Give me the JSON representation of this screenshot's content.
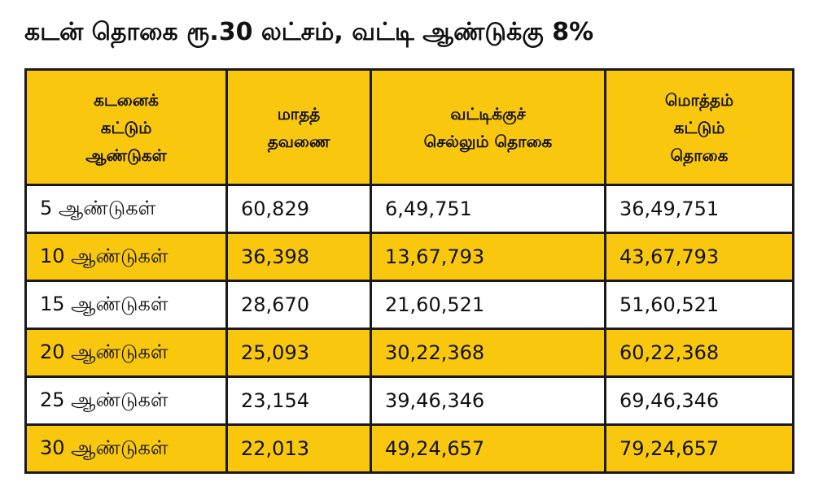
{
  "title": "கடன் தொகை ரூ.30 லட்சம், வட்டி ஆண்டுக்கு 8%",
  "colors": {
    "header_bg": "#f9c80e",
    "alt_row_bg": "#f9c80e",
    "row_bg": "#ffffff",
    "border": "#1a1a1a"
  },
  "table": {
    "headers": [
      [
        "கடனைக்",
        "கட்டும்",
        "ஆண்டுகள்"
      ],
      [
        "மாதத்",
        "தவணை"
      ],
      [
        "வட்டிக்குச்",
        "செல்லும் தொகை"
      ],
      [
        "மொத்தம்",
        "கட்டும்",
        "தொகை"
      ]
    ],
    "rows": [
      [
        "5 ஆண்டுகள்",
        "60,829",
        "6,49,751",
        "36,49,751"
      ],
      [
        "10 ஆண்டுகள்",
        "36,398",
        "13,67,793",
        "43,67,793"
      ],
      [
        "15 ஆண்டுகள்",
        "28,670",
        "21,60,521",
        "51,60,521"
      ],
      [
        "20 ஆண்டுகள்",
        "25,093",
        "30,22,368",
        "60,22,368"
      ],
      [
        "25 ஆண்டுகள்",
        "23,154",
        "39,46,346",
        "69,46,346"
      ],
      [
        "30 ஆண்டுகள்",
        "22,013",
        "49,24,657",
        "79,24,657"
      ]
    ]
  }
}
